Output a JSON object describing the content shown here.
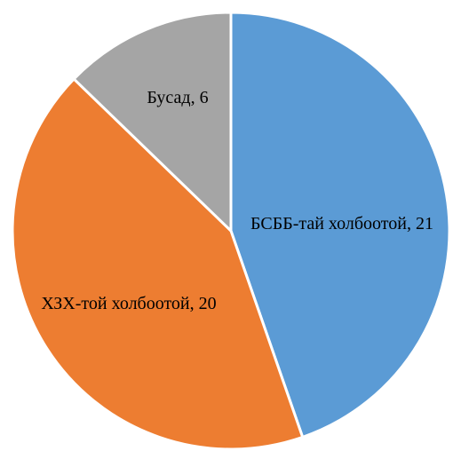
{
  "chart_data": {
    "type": "pie",
    "values": [
      21,
      20,
      6
    ],
    "value_labels": [
      "БСББ-тай холбоотой, 21",
      "ХЗХ-той холбоотой, 20",
      "Бусад, 6"
    ],
    "colors": [
      "#5b9bd5",
      "#ed7d31",
      "#a5a5a5"
    ]
  }
}
